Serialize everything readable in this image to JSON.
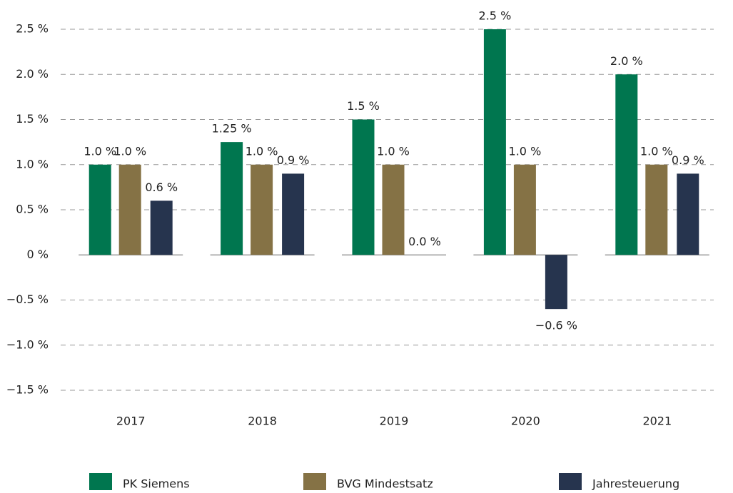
{
  "chart_data": {
    "type": "bar",
    "categories": [
      "2017",
      "2018",
      "2019",
      "2020",
      "2021"
    ],
    "series": [
      {
        "name": "PK Siemens",
        "color": "#00764f",
        "values": [
          1.0,
          1.25,
          1.5,
          2.5,
          2.0
        ],
        "value_labels": [
          "1.0 %",
          "1.25 %",
          "1.5 %",
          "2.5 %",
          "2.0 %"
        ]
      },
      {
        "name": "BVG Mindestsatz",
        "color": "#857245",
        "values": [
          1.0,
          1.0,
          1.0,
          1.0,
          1.0
        ],
        "value_labels": [
          "1.0 %",
          "1.0 %",
          "1.0 %",
          "1.0 %",
          "1.0 %"
        ]
      },
      {
        "name": "Jahresteuerung",
        "color": "#26344e",
        "values": [
          0.6,
          0.9,
          0.0,
          -0.6,
          0.9
        ],
        "value_labels": [
          "0.6 %",
          "0.9 %",
          "0.0 %",
          "−0.6 %",
          "0.9 %"
        ]
      }
    ],
    "ylim": [
      -1.5,
      2.5
    ],
    "yticks": [
      {
        "value": 2.5,
        "label": "2.5 %"
      },
      {
        "value": 2.0,
        "label": "2.0 %"
      },
      {
        "value": 1.5,
        "label": "1.5 %"
      },
      {
        "value": 1.0,
        "label": "1.0 %"
      },
      {
        "value": 0.5,
        "label": "0.5 %"
      },
      {
        "value": 0,
        "label": "0 %"
      },
      {
        "value": -0.5,
        "label": "−0.5 %"
      },
      {
        "value": -1.0,
        "label": "−1.0 %"
      },
      {
        "value": -1.5,
        "label": "−1.5 %"
      }
    ],
    "grid": true,
    "legend": "bottom"
  }
}
